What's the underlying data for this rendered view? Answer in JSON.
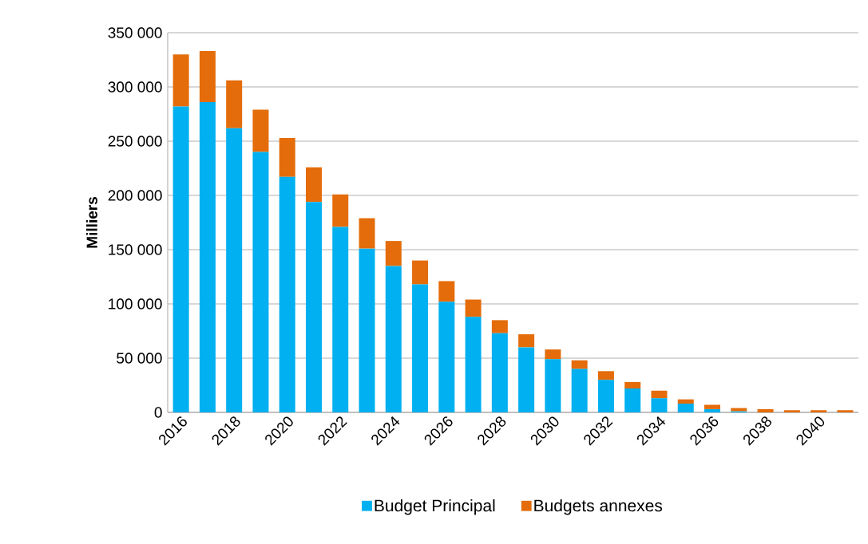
{
  "chart_data": {
    "type": "bar",
    "stacked": true,
    "ylabel": "Milliers",
    "categories": [
      "2016",
      null,
      "2018",
      null,
      "2020",
      null,
      "2022",
      null,
      "2024",
      null,
      "2026",
      null,
      "2028",
      null,
      "2030",
      null,
      "2032",
      null,
      "2034",
      null,
      "2036",
      null,
      "2038",
      null,
      "2040",
      null
    ],
    "series": [
      {
        "name": "Budget Principal",
        "color": "#00b0f0",
        "values": [
          282000,
          286000,
          262000,
          240000,
          217000,
          194000,
          171000,
          151000,
          135000,
          118000,
          102000,
          88000,
          73000,
          60000,
          49000,
          40000,
          30000,
          22000,
          13000,
          8000,
          3000,
          1000,
          0,
          0,
          0,
          0
        ]
      },
      {
        "name": "Budgets annexes",
        "color": "#e46c0a",
        "values": [
          48000,
          47000,
          44000,
          39000,
          36000,
          32000,
          30000,
          28000,
          23000,
          22000,
          19000,
          16000,
          12000,
          12000,
          9000,
          8000,
          8000,
          6000,
          7000,
          4000,
          4000,
          3000,
          3000,
          2000,
          2000,
          2000
        ]
      }
    ],
    "ylim": [
      0,
      350000
    ],
    "yticks": [
      {
        "value": 0,
        "label": "0"
      },
      {
        "value": 50000,
        "label": "50 000"
      },
      {
        "value": 100000,
        "label": "100 000"
      },
      {
        "value": 150000,
        "label": "150 000"
      },
      {
        "value": 200000,
        "label": "200 000"
      },
      {
        "value": 250000,
        "label": "250 000"
      },
      {
        "value": 300000,
        "label": "300 000"
      },
      {
        "value": 350000,
        "label": "350 000"
      }
    ],
    "grid": "y",
    "legend": "bottom"
  }
}
